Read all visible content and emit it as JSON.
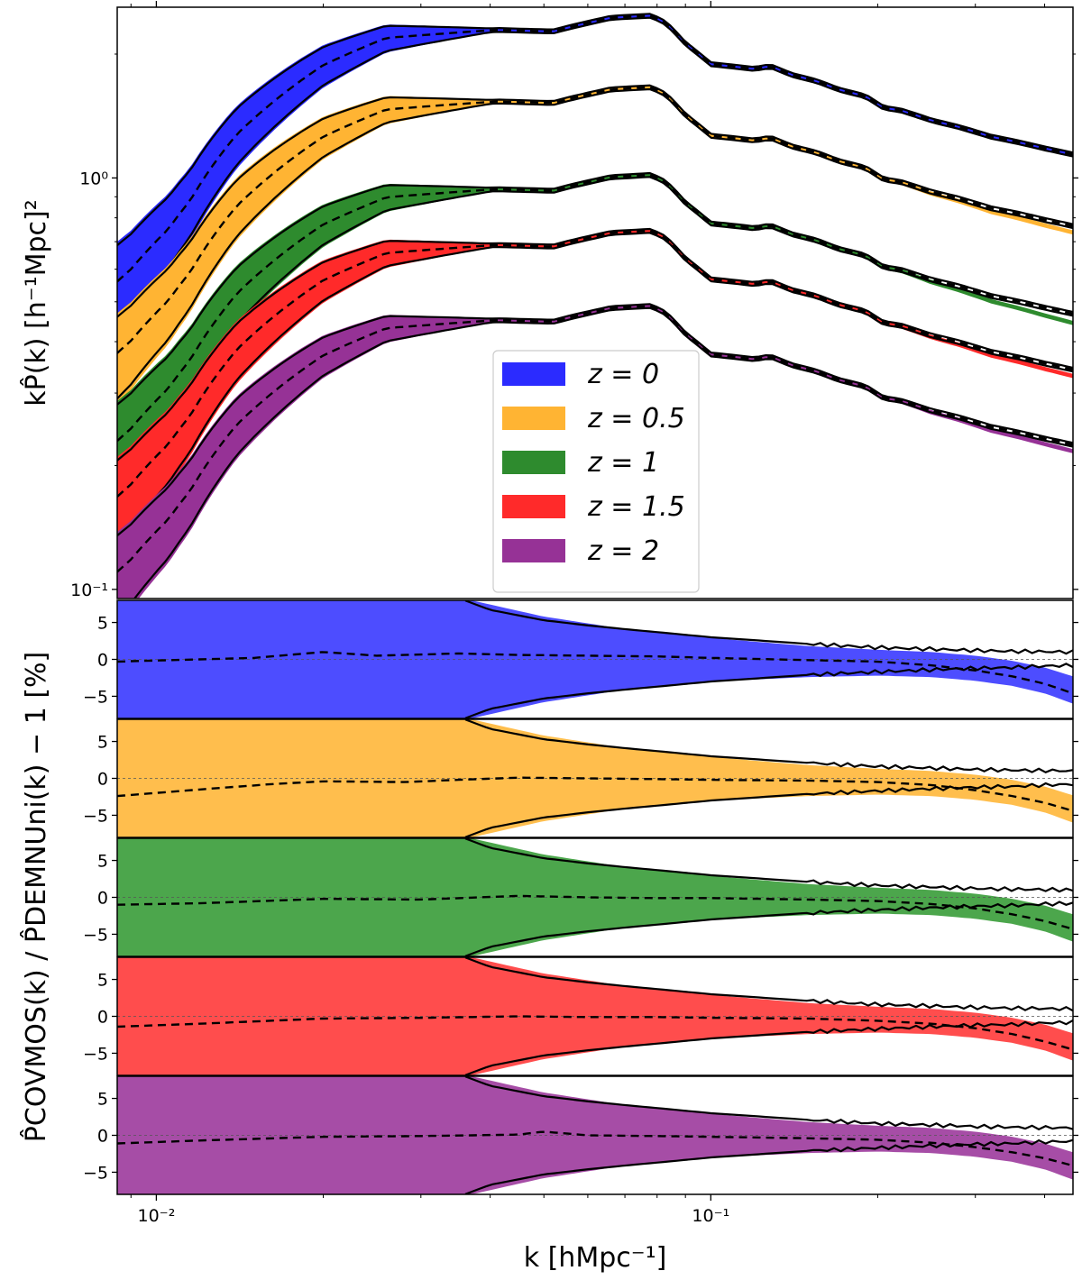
{
  "chart_data": {
    "type": "area",
    "xscale": "log",
    "xlabel": "k [hMpc⁻¹]",
    "xlim": [
      0.0085,
      0.45
    ],
    "x_tick_labels": [
      "10⁻²",
      "10⁻¹"
    ],
    "x_tick_values": [
      0.01,
      0.1
    ],
    "top": {
      "yscale": "log",
      "ylabel": "kP̂(k) [h⁻¹Mpc]²",
      "ylim": [
        0.095,
        2.6
      ],
      "y_tick_labels": [
        "10⁰",
        "10⁻¹"
      ],
      "y_tick_values": [
        1.0,
        0.1
      ],
      "legend_position": "center",
      "band_frac_at_large_scale": 0.25,
      "band_frac_at_small_scale": 0.012,
      "series": [
        {
          "name": "z = 0",
          "label": "z = 0",
          "color": "#2b2bff",
          "scale": 1.0,
          "tail": 1.0
        },
        {
          "name": "z = 0.5",
          "label": "z = 0.5",
          "color": "#ffb433",
          "scale": 0.67,
          "tail": 0.965
        },
        {
          "name": "z = 1",
          "label": "z = 1",
          "color": "#2e8b2e",
          "scale": 0.41,
          "tail": 0.95
        },
        {
          "name": "z = 1.5",
          "label": "z = 1.5",
          "color": "#ff2a2a",
          "scale": 0.3,
          "tail": 0.965
        },
        {
          "name": "z = 2",
          "label": "z = 2",
          "color": "#963296",
          "scale": 0.197,
          "tail": 0.965
        }
      ],
      "base_curve": {
        "k": [
          0.0085,
          0.009,
          0.0105,
          0.0115,
          0.014,
          0.02,
          0.026,
          0.034,
          0.041,
          0.052,
          0.056,
          0.066,
          0.078,
          0.083,
          0.09,
          0.1,
          0.112,
          0.12,
          0.128,
          0.14,
          0.155,
          0.17,
          0.19,
          0.205,
          0.22,
          0.25,
          0.28,
          0.32,
          0.36,
          0.4,
          0.45
        ],
        "kP": [
          0.56,
          0.6,
          0.75,
          0.88,
          1.28,
          1.88,
          2.19,
          2.25,
          2.29,
          2.27,
          2.33,
          2.45,
          2.48,
          2.38,
          2.12,
          1.89,
          1.86,
          1.84,
          1.87,
          1.78,
          1.72,
          1.64,
          1.58,
          1.48,
          1.46,
          1.38,
          1.33,
          1.26,
          1.22,
          1.18,
          1.14
        ]
      }
    },
    "bottom": {
      "ylabel": "P̂COVMOS(k) / P̂DEMNUni(k) − 1 [%]",
      "ylim": [
        -8,
        8
      ],
      "y_tick_labels": [
        "5",
        "0",
        "−5"
      ],
      "y_tick_values": [
        5,
        0,
        -5
      ],
      "panels": [
        {
          "name": "z = 0",
          "color": "#4d4dff",
          "mean_k": [
            0.0085,
            0.015,
            0.02,
            0.025,
            0.035,
            0.045,
            0.06,
            0.08,
            0.1,
            0.15,
            0.2,
            0.25,
            0.3,
            0.35,
            0.4,
            0.45
          ],
          "mean_v": [
            -0.3,
            0.2,
            1.0,
            0.5,
            0.8,
            0.6,
            0.5,
            0.4,
            0.2,
            -0.1,
            -0.3,
            -0.8,
            -1.5,
            -2.3,
            -3.3,
            -4.6
          ]
        },
        {
          "name": "z = 0.5",
          "color": "#ffbe4d",
          "mean_k": [
            0.0085,
            0.012,
            0.016,
            0.02,
            0.028,
            0.035,
            0.045,
            0.06,
            0.08,
            0.1,
            0.15,
            0.2,
            0.25,
            0.3,
            0.35,
            0.4,
            0.45
          ],
          "mean_v": [
            -2.4,
            -1.5,
            -0.8,
            -0.4,
            -0.5,
            -0.2,
            0.1,
            0.0,
            -0.1,
            -0.2,
            -0.3,
            -0.5,
            -0.9,
            -1.6,
            -2.4,
            -3.3,
            -4.4
          ]
        },
        {
          "name": "z = 1",
          "color": "#4ca64c",
          "mean_k": [
            0.0085,
            0.012,
            0.02,
            0.03,
            0.045,
            0.06,
            0.08,
            0.1,
            0.15,
            0.2,
            0.25,
            0.3,
            0.35,
            0.4,
            0.45
          ],
          "mean_v": [
            -1.0,
            -0.8,
            -0.2,
            -0.3,
            0.2,
            0.0,
            -0.1,
            -0.1,
            -0.3,
            -0.5,
            -0.9,
            -1.5,
            -2.3,
            -3.2,
            -4.3
          ]
        },
        {
          "name": "z = 1.5",
          "color": "#ff4d4d",
          "mean_k": [
            0.0085,
            0.012,
            0.02,
            0.03,
            0.045,
            0.06,
            0.08,
            0.1,
            0.15,
            0.2,
            0.25,
            0.3,
            0.35,
            0.4,
            0.45
          ],
          "mean_v": [
            -1.4,
            -1.0,
            -0.3,
            -0.2,
            0.0,
            -0.1,
            -0.1,
            -0.2,
            -0.3,
            -0.6,
            -1.0,
            -1.6,
            -2.4,
            -3.4,
            -4.5
          ]
        },
        {
          "name": "z = 2",
          "color": "#a64da6",
          "mean_k": [
            0.0085,
            0.012,
            0.02,
            0.03,
            0.045,
            0.05,
            0.06,
            0.08,
            0.1,
            0.15,
            0.2,
            0.25,
            0.3,
            0.35,
            0.4,
            0.45
          ],
          "mean_v": [
            -1.1,
            -0.7,
            -0.2,
            -0.1,
            0.1,
            0.5,
            0.0,
            -0.1,
            -0.2,
            -0.4,
            -0.6,
            -1.0,
            -1.6,
            -2.3,
            -3.1,
            -4.1
          ]
        }
      ],
      "envelope_k": [
        0.036,
        0.04,
        0.05,
        0.06,
        0.07,
        0.08,
        0.1,
        0.12,
        0.15,
        0.2,
        0.25,
        0.3,
        0.35,
        0.4,
        0.45
      ],
      "envelope_upper": [
        8.0,
        6.7,
        5.3,
        4.6,
        4.1,
        3.7,
        3.0,
        2.6,
        2.1,
        1.6,
        1.4,
        1.2,
        1.1,
        1.05,
        1.0
      ],
      "envelope_lower": [
        -8.0,
        -6.7,
        -5.3,
        -4.6,
        -4.1,
        -3.7,
        -3.0,
        -2.6,
        -2.1,
        -1.7,
        -1.4,
        -1.2,
        -1.1,
        -0.9,
        -0.8
      ],
      "band_k": [
        0.0085,
        0.03,
        0.036,
        0.05,
        0.07,
        0.1,
        0.15,
        0.2,
        0.25,
        0.3,
        0.35,
        0.4,
        0.45
      ],
      "band_upper": [
        8.5,
        8.5,
        8.2,
        5.8,
        4.1,
        2.9,
        1.8,
        1.3,
        1.0,
        0.5,
        -0.2,
        -1.1,
        -2.3
      ],
      "band_lower": [
        -8.5,
        -8.5,
        -8.2,
        -5.8,
        -4.1,
        -3.0,
        -2.4,
        -2.2,
        -2.4,
        -2.9,
        -3.6,
        -4.6,
        -6.0
      ]
    }
  }
}
